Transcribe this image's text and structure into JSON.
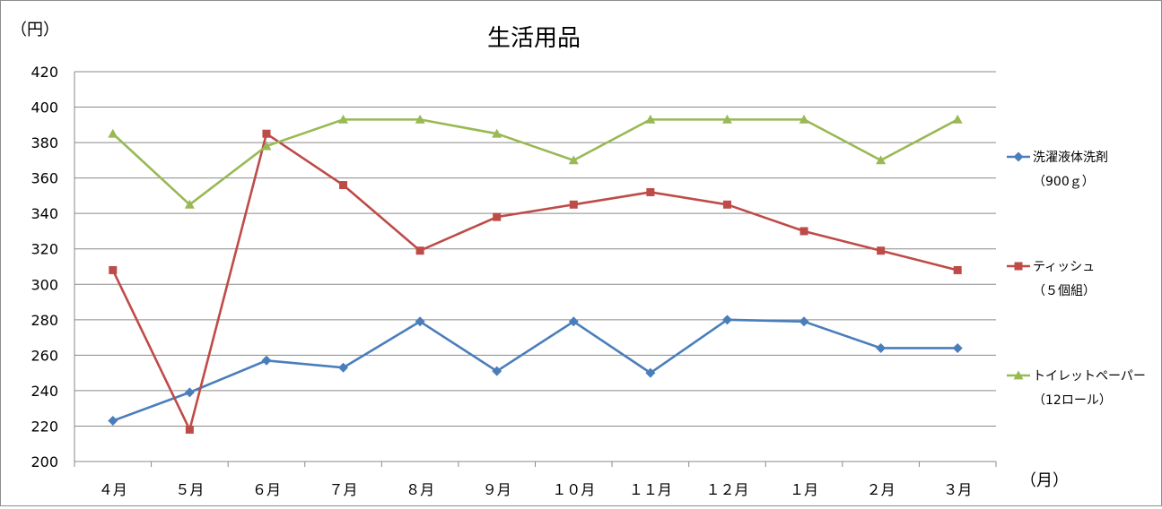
{
  "chart_data": {
    "type": "line",
    "title": "生活用品",
    "ylabel": "（円）",
    "xlabel": "（月）",
    "ylim": [
      200,
      420
    ],
    "yticks": [
      200,
      220,
      240,
      260,
      280,
      300,
      320,
      340,
      360,
      380,
      400,
      420
    ],
    "grid": true,
    "legend": "right",
    "categories": [
      "４月",
      "５月",
      "６月",
      "７月",
      "８月",
      "９月",
      "１０月",
      "１１月",
      "１２月",
      "１月",
      "２月",
      "３月"
    ],
    "series": [
      {
        "name": "洗濯液体洗剤",
        "name_sub": "（900ｇ）",
        "color": "#4a7ebb",
        "marker": "diamond",
        "values": [
          223,
          239,
          257,
          253,
          279,
          251,
          279,
          250,
          280,
          279,
          264,
          264
        ]
      },
      {
        "name": "ティッシュ",
        "name_sub": "（５個組）",
        "color": "#be4b48",
        "marker": "square",
        "values": [
          308,
          218,
          385,
          356,
          319,
          338,
          345,
          352,
          345,
          330,
          319,
          308
        ]
      },
      {
        "name": "トイレットペーパー",
        "name_sub": "（12ロール）",
        "color": "#98b954",
        "marker": "triangle",
        "values": [
          385,
          345,
          378,
          393,
          393,
          385,
          370,
          393,
          393,
          393,
          370,
          393
        ]
      }
    ]
  }
}
